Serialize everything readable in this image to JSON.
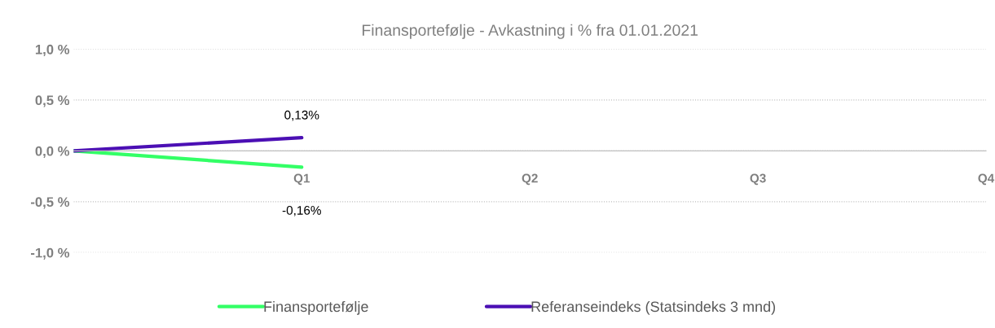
{
  "chart_data": {
    "type": "line",
    "title": "Finansportefølje - Avkastning i % fra 01.01.2021",
    "categories": [
      null,
      "Q1",
      "Q2",
      "Q3",
      "Q4"
    ],
    "series": [
      {
        "name": "Finansportefølje",
        "color": "#33ff66",
        "values": [
          0,
          -0.16,
          null,
          null,
          null
        ],
        "value_labels": [
          null,
          "-0,16%",
          null,
          null,
          null
        ]
      },
      {
        "name": "Referanseindeks (Statsindeks 3 mnd)",
        "color": "#4b0fb4",
        "values": [
          0,
          0.13,
          null,
          null,
          null
        ],
        "value_labels": [
          null,
          "0,13%",
          null,
          null,
          null
        ]
      }
    ],
    "ylim": [
      -1.0,
      1.0
    ],
    "yticks": [
      {
        "value": -1.0,
        "label": "-1,0 %"
      },
      {
        "value": -0.5,
        "label": "-0,5 %"
      },
      {
        "value": 0,
        "label": "0,0 %"
      },
      {
        "value": 0.5,
        "label": "0,5 %"
      },
      {
        "value": 1.0,
        "label": "1,0 %"
      }
    ],
    "grid": "y",
    "legend": "bottom",
    "marker": "none",
    "line_style": "solid"
  }
}
